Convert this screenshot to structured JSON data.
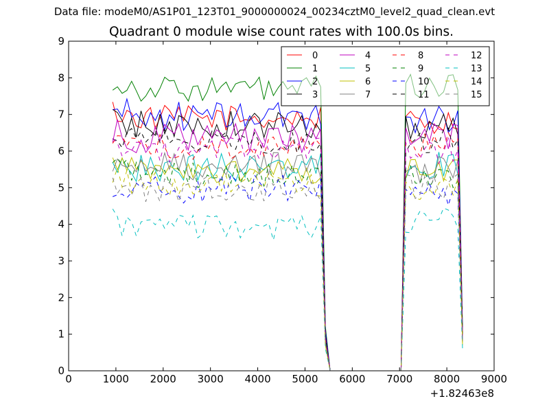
{
  "chart_data": {
    "type": "line",
    "suptitle": "Data file: modeM0/AS1P01_123T01_9000000024_00234cztM0_level2_quad_clean.evt",
    "title": "Quadrant 0 module wise count rates with 100.0s bins.",
    "xlabel": "",
    "ylabel": "",
    "x_offset_label": "+1.82463e8",
    "xlim": [
      0,
      9000
    ],
    "ylim": [
      0,
      9
    ],
    "xticks": [
      "0",
      "1000",
      "2000",
      "3000",
      "4000",
      "5000",
      "6000",
      "7000",
      "8000",
      "9000"
    ],
    "yticks": [
      "0",
      "1",
      "2",
      "3",
      "4",
      "5",
      "6",
      "7",
      "8",
      "9"
    ],
    "grid": false,
    "legend_placement": "top-right",
    "legend_columns": 4,
    "x_segment1": {
      "start": 932,
      "step": 100,
      "count": 45
    },
    "x_segment2": {
      "start": 7132,
      "step": 100,
      "count": 12
    },
    "series": [
      {
        "name": "0",
        "color": "#ff0000",
        "dashed": false,
        "base": 6.9,
        "amp": 0.35,
        "seg2": 6.8,
        "tail": 0.9
      },
      {
        "name": "1",
        "color": "#008000",
        "dashed": false,
        "base": 7.7,
        "amp": 0.35,
        "seg2": 7.75,
        "tail": 1.2
      },
      {
        "name": "2",
        "color": "#0000ff",
        "dashed": false,
        "base": 6.95,
        "amp": 0.4,
        "seg2": 6.9,
        "tail": 1.1
      },
      {
        "name": "3",
        "color": "#000000",
        "dashed": false,
        "base": 6.7,
        "amp": 0.4,
        "seg2": 6.7,
        "tail": 1.0
      },
      {
        "name": "4",
        "color": "#bf00bf",
        "dashed": false,
        "base": 6.35,
        "amp": 0.4,
        "seg2": 6.4,
        "tail": 0.9
      },
      {
        "name": "5",
        "color": "#00bfbf",
        "dashed": false,
        "base": 5.55,
        "amp": 0.4,
        "seg2": 5.6,
        "tail": 0.8
      },
      {
        "name": "6",
        "color": "#bfbf00",
        "dashed": false,
        "base": 5.45,
        "amp": 0.35,
        "seg2": 5.5,
        "tail": 0.7
      },
      {
        "name": "7",
        "color": "#808080",
        "dashed": false,
        "base": 5.6,
        "amp": 0.4,
        "seg2": 5.5,
        "tail": 0.8
      },
      {
        "name": "8",
        "color": "#ff0000",
        "dashed": true,
        "base": 6.1,
        "amp": 0.35,
        "seg2": 6.2,
        "tail": 0.9
      },
      {
        "name": "9",
        "color": "#008000",
        "dashed": true,
        "base": 5.35,
        "amp": 0.35,
        "seg2": 5.3,
        "tail": 0.8
      },
      {
        "name": "10",
        "color": "#0000ff",
        "dashed": true,
        "base": 4.95,
        "amp": 0.4,
        "seg2": 4.9,
        "tail": 0.8
      },
      {
        "name": "11",
        "color": "#000000",
        "dashed": true,
        "base": 6.25,
        "amp": 0.35,
        "seg2": 6.3,
        "tail": 0.9
      },
      {
        "name": "12",
        "color": "#bf00bf",
        "dashed": true,
        "base": 6.05,
        "amp": 0.35,
        "seg2": 6.0,
        "tail": 0.9
      },
      {
        "name": "13",
        "color": "#00bfbf",
        "dashed": true,
        "base": 3.9,
        "amp": 0.35,
        "seg2": 4.1,
        "tail": 0.6
      },
      {
        "name": "14",
        "color": "#bfbf00",
        "dashed": true,
        "base": 5.1,
        "amp": 0.35,
        "seg2": 5.0,
        "tail": 0.7
      },
      {
        "name": "15",
        "color": "#808080",
        "dashed": true,
        "base": 5.0,
        "amp": 0.4,
        "seg2": 5.0,
        "tail": 0.8
      }
    ]
  }
}
